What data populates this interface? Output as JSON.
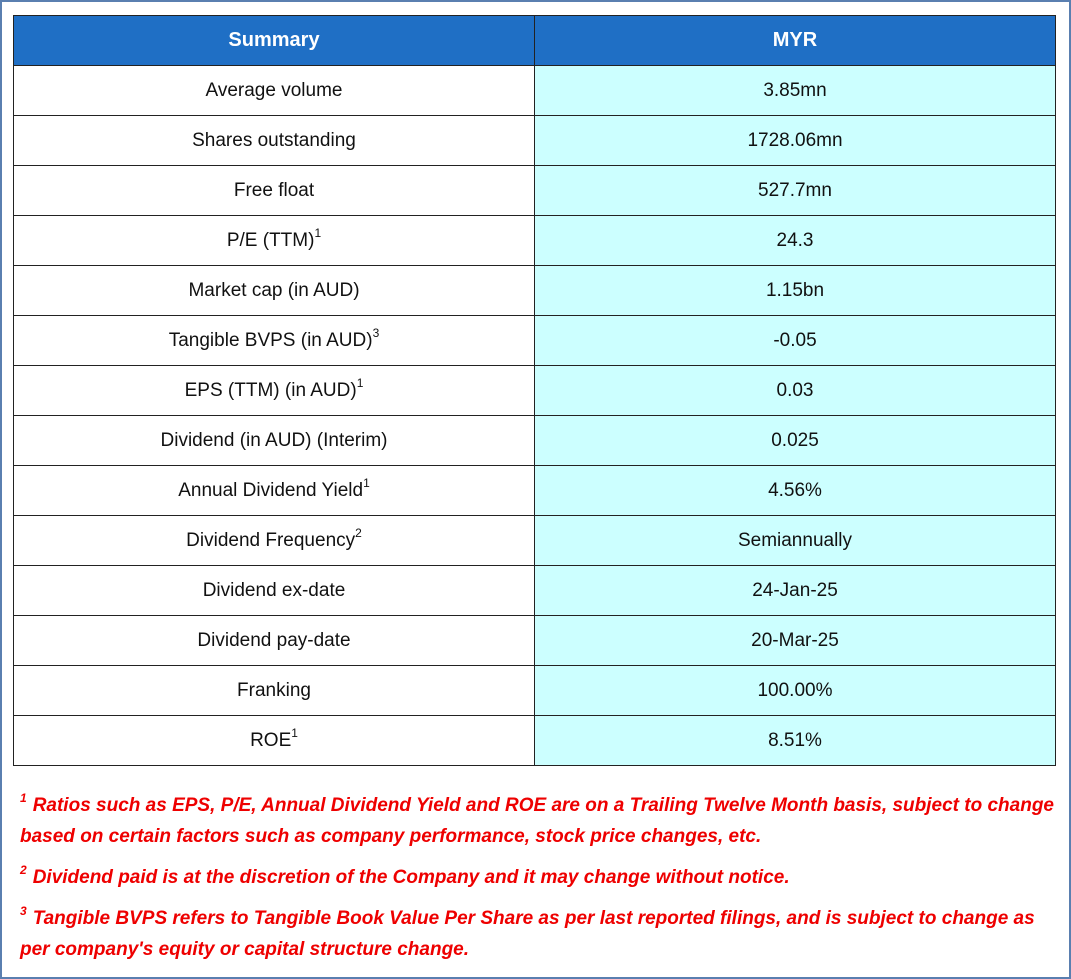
{
  "table": {
    "header": [
      "Summary",
      "MYR"
    ],
    "rows": [
      {
        "label": "Average volume",
        "value": "3.85mn"
      },
      {
        "label": "Shares outstanding",
        "value": "1728.06mn"
      },
      {
        "label": "Free float",
        "value": "527.7mn"
      },
      {
        "label": "P/E (TTM)",
        "sup": "1",
        "value": "24.3"
      },
      {
        "label": "Market cap (in AUD)",
        "value": "1.15bn"
      },
      {
        "label": "Tangible BVPS (in AUD)",
        "sup": "3",
        "value": "-0.05"
      },
      {
        "label": "EPS (TTM) (in AUD)",
        "sup": "1",
        "value": "0.03"
      },
      {
        "label": "Dividend (in AUD) (Interim)",
        "value": "0.025"
      },
      {
        "label": "Annual Dividend Yield",
        "sup": "1",
        "value": "4.56%"
      },
      {
        "label": "Dividend Frequency",
        "sup": "2",
        "value": "Semiannually"
      },
      {
        "label": "Dividend ex-date",
        "value": "24-Jan-25"
      },
      {
        "label": "Dividend pay-date",
        "value": "20-Mar-25"
      },
      {
        "label": "Franking",
        "value": "100.00%"
      },
      {
        "label": "ROE",
        "sup": "1",
        "value": "8.51%"
      }
    ]
  },
  "footnotes": [
    {
      "mark": "1",
      "text": "Ratios such as EPS, P/E, Annual Dividend Yield and ROE are on a Trailing Twelve Month basis, subject to change based on certain factors such as company performance, stock price changes, etc."
    },
    {
      "mark": "2",
      "text": "Dividend paid is at the discretion of the Company and it may change without notice."
    },
    {
      "mark": "3",
      "text": "Tangible BVPS refers to Tangible Book Value Per Share as per last reported filings, and is subject to change as per company's equity or capital structure change."
    }
  ]
}
